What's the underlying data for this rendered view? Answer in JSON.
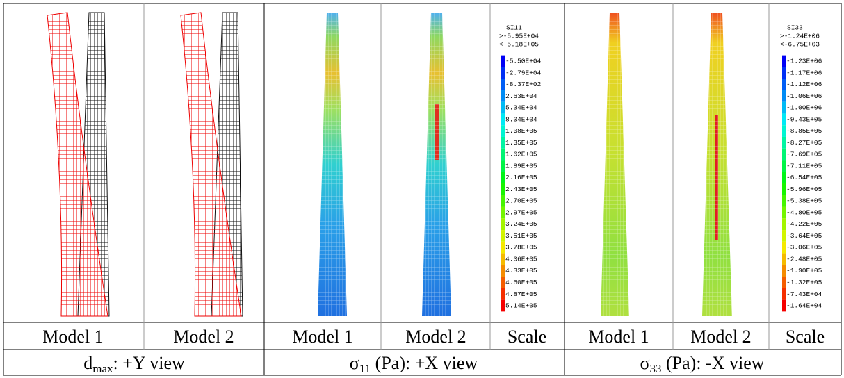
{
  "column_labels": [
    "Model 1",
    "Model 2",
    "Model 1",
    "Model 2",
    "Scale",
    "Model 1",
    "Model 2",
    "Scale"
  ],
  "captions": [
    {
      "symbol": "d",
      "subscript": "max",
      "text": ": +Y view"
    },
    {
      "symbol": "σ",
      "subscript": "11",
      "text": " (Pa): +X view"
    },
    {
      "symbol": "σ",
      "subscript": "33",
      "text": " (Pa): -X view"
    }
  ],
  "scales": [
    {
      "title": "SI11",
      "max_label": ">-5.95E+04",
      "min_label": "< 5.18E+05",
      "levels": [
        "-5.50E+04",
        "-2.79E+04",
        "-8.37E+02",
        "2.63E+04",
        "5.34E+04",
        "8.04E+04",
        "1.08E+05",
        "1.35E+05",
        "1.62E+05",
        "1.89E+05",
        "2.16E+05",
        "2.43E+05",
        "2.70E+05",
        "2.97E+05",
        "3.24E+05",
        "3.51E+05",
        "3.78E+05",
        "4.06E+05",
        "4.33E+05",
        "4.60E+05",
        "4.87E+05",
        "5.14E+05"
      ]
    },
    {
      "title": "SI33",
      "max_label": ">-1.24E+06",
      "min_label": "<-6.75E+03",
      "levels": [
        "-1.23E+06",
        "-1.17E+06",
        "-1.12E+06",
        "-1.06E+06",
        "-1.00E+06",
        "-9.43E+05",
        "-8.85E+05",
        "-8.27E+05",
        "-7.69E+05",
        "-7.11E+05",
        "-6.54E+05",
        "-5.96E+05",
        "-5.38E+05",
        "-4.80E+05",
        "-4.22E+05",
        "-3.64E+05",
        "-3.06E+05",
        "-2.48E+05",
        "-1.90E+05",
        "-1.32E+05",
        "-7.43E+04",
        "-1.64E+04"
      ]
    }
  ]
}
